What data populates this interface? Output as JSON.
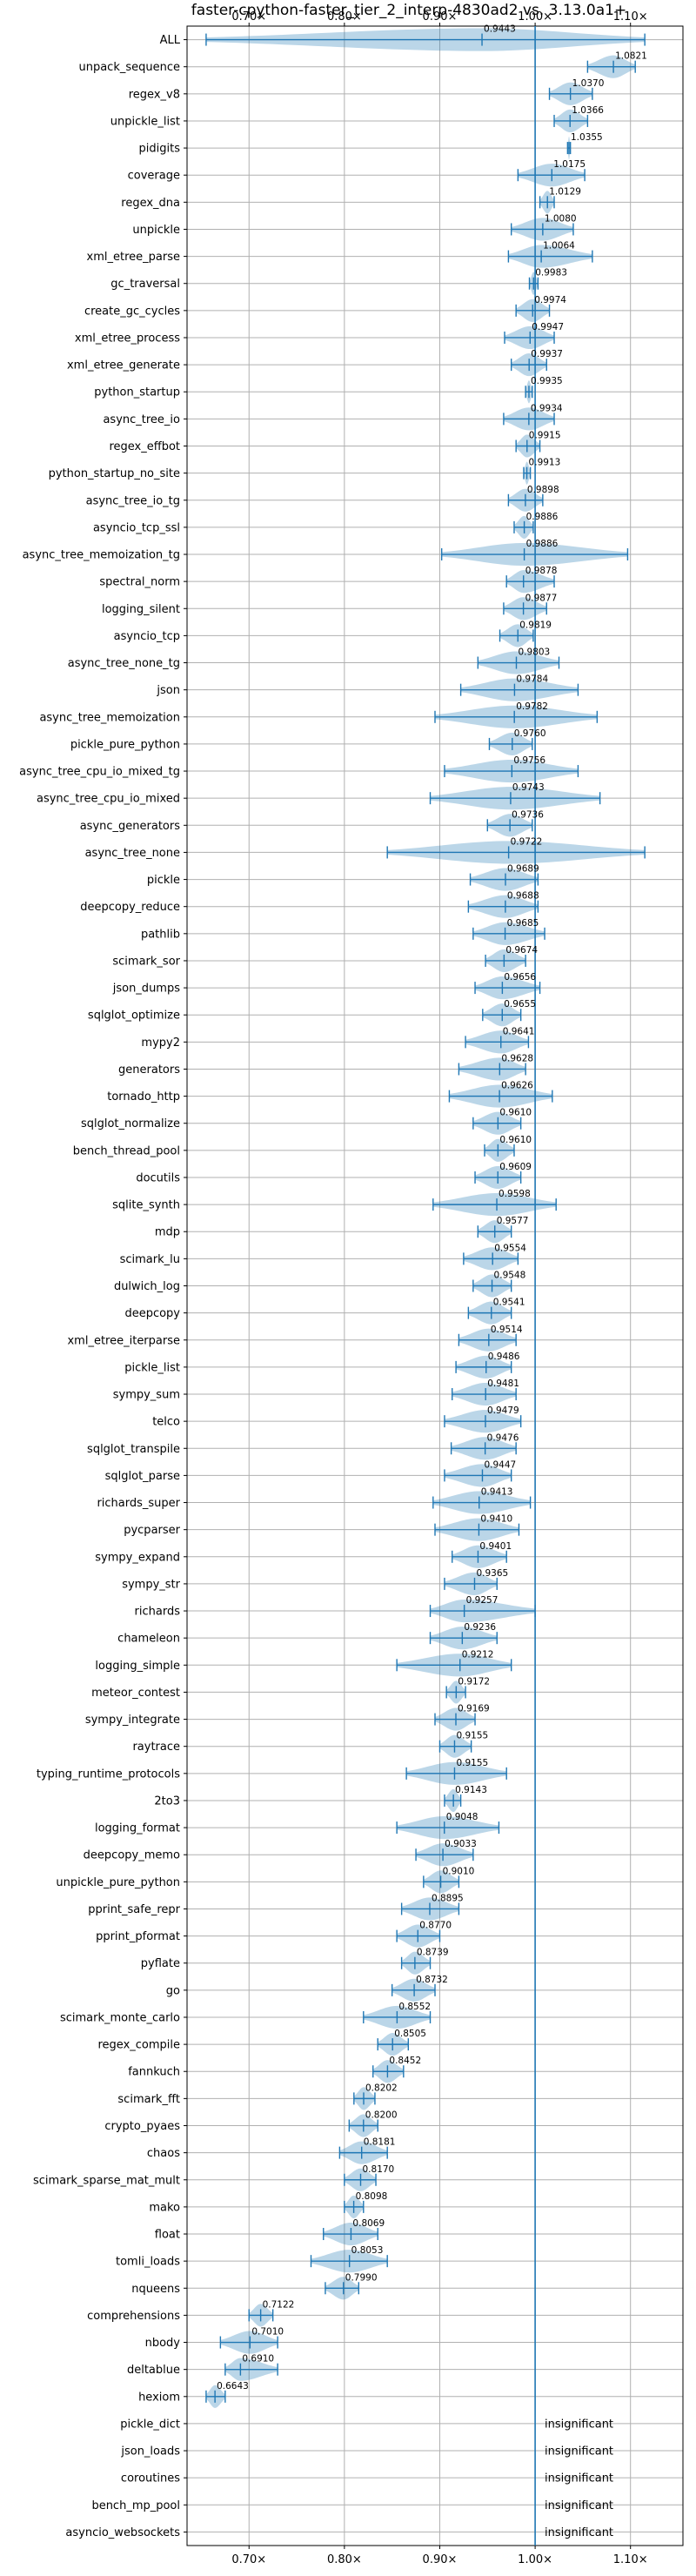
{
  "chart_data": {
    "type": "violin",
    "title": "faster-cpython-faster_tier_2_interp-4830ad2 vs. 3.13.0a1+",
    "xlabel": "",
    "ylabel": "",
    "xlim": [
      0.635,
      1.155
    ],
    "xticks": [
      0.7,
      0.8,
      0.9,
      1.0,
      1.1
    ],
    "xtick_labels": [
      "0.70×",
      "0.80×",
      "0.90×",
      "1.00×",
      "1.10×"
    ],
    "reference_line": 1.0,
    "grid": true,
    "insignificant_label": "insignificant",
    "benchmarks": [
      {
        "name": "ALL",
        "mean": 0.9443,
        "lo": 0.655,
        "hi": 1.115
      },
      {
        "name": "unpack_sequence",
        "mean": 1.0821,
        "lo": 1.055,
        "hi": 1.105
      },
      {
        "name": "regex_v8",
        "mean": 1.037,
        "lo": 1.015,
        "hi": 1.06
      },
      {
        "name": "unpickle_list",
        "mean": 1.0366,
        "lo": 1.02,
        "hi": 1.055
      },
      {
        "name": "pidigits",
        "mean": 1.0355,
        "lo": 1.034,
        "hi": 1.037
      },
      {
        "name": "coverage",
        "mean": 1.0175,
        "lo": 0.982,
        "hi": 1.052
      },
      {
        "name": "regex_dna",
        "mean": 1.0129,
        "lo": 1.005,
        "hi": 1.02
      },
      {
        "name": "unpickle",
        "mean": 1.008,
        "lo": 0.975,
        "hi": 1.04
      },
      {
        "name": "xml_etree_parse",
        "mean": 1.0064,
        "lo": 0.972,
        "hi": 1.06
      },
      {
        "name": "gc_traversal",
        "mean": 0.9983,
        "lo": 0.994,
        "hi": 1.003
      },
      {
        "name": "create_gc_cycles",
        "mean": 0.9974,
        "lo": 0.98,
        "hi": 1.015
      },
      {
        "name": "xml_etree_process",
        "mean": 0.9947,
        "lo": 0.968,
        "hi": 1.02
      },
      {
        "name": "xml_etree_generate",
        "mean": 0.9937,
        "lo": 0.975,
        "hi": 1.012
      },
      {
        "name": "python_startup",
        "mean": 0.9935,
        "lo": 0.99,
        "hi": 0.997
      },
      {
        "name": "async_tree_io",
        "mean": 0.9934,
        "lo": 0.967,
        "hi": 1.02
      },
      {
        "name": "regex_effbot",
        "mean": 0.9915,
        "lo": 0.98,
        "hi": 1.005
      },
      {
        "name": "python_startup_no_site",
        "mean": 0.9913,
        "lo": 0.988,
        "hi": 0.995
      },
      {
        "name": "async_tree_io_tg",
        "mean": 0.9898,
        "lo": 0.972,
        "hi": 1.008
      },
      {
        "name": "asyncio_tcp_ssl",
        "mean": 0.9886,
        "lo": 0.978,
        "hi": 0.998
      },
      {
        "name": "async_tree_memoization_tg",
        "mean": 0.9886,
        "lo": 0.902,
        "hi": 1.097
      },
      {
        "name": "spectral_norm",
        "mean": 0.9878,
        "lo": 0.97,
        "hi": 1.02
      },
      {
        "name": "logging_silent",
        "mean": 0.9877,
        "lo": 0.967,
        "hi": 1.012
      },
      {
        "name": "asyncio_tcp",
        "mean": 0.9819,
        "lo": 0.963,
        "hi": 0.998
      },
      {
        "name": "async_tree_none_tg",
        "mean": 0.9803,
        "lo": 0.94,
        "hi": 1.025
      },
      {
        "name": "json",
        "mean": 0.9784,
        "lo": 0.922,
        "hi": 1.045
      },
      {
        "name": "async_tree_memoization",
        "mean": 0.9782,
        "lo": 0.895,
        "hi": 1.065
      },
      {
        "name": "pickle_pure_python",
        "mean": 0.976,
        "lo": 0.952,
        "hi": 0.997
      },
      {
        "name": "async_tree_cpu_io_mixed_tg",
        "mean": 0.9756,
        "lo": 0.905,
        "hi": 1.045
      },
      {
        "name": "async_tree_cpu_io_mixed",
        "mean": 0.9743,
        "lo": 0.89,
        "hi": 1.068
      },
      {
        "name": "async_generators",
        "mean": 0.9736,
        "lo": 0.95,
        "hi": 0.997
      },
      {
        "name": "async_tree_none",
        "mean": 0.9722,
        "lo": 0.845,
        "hi": 1.115
      },
      {
        "name": "pickle",
        "mean": 0.9689,
        "lo": 0.932,
        "hi": 1.003
      },
      {
        "name": "deepcopy_reduce",
        "mean": 0.9688,
        "lo": 0.93,
        "hi": 1.003
      },
      {
        "name": "pathlib",
        "mean": 0.9685,
        "lo": 0.935,
        "hi": 1.01
      },
      {
        "name": "scimark_sor",
        "mean": 0.9674,
        "lo": 0.948,
        "hi": 0.99
      },
      {
        "name": "json_dumps",
        "mean": 0.9656,
        "lo": 0.937,
        "hi": 1.005
      },
      {
        "name": "sqlglot_optimize",
        "mean": 0.9655,
        "lo": 0.945,
        "hi": 0.985
      },
      {
        "name": "mypy2",
        "mean": 0.9641,
        "lo": 0.927,
        "hi": 0.993
      },
      {
        "name": "generators",
        "mean": 0.9628,
        "lo": 0.92,
        "hi": 0.99
      },
      {
        "name": "tornado_http",
        "mean": 0.9626,
        "lo": 0.91,
        "hi": 1.018
      },
      {
        "name": "sqlglot_normalize",
        "mean": 0.961,
        "lo": 0.935,
        "hi": 0.985
      },
      {
        "name": "bench_thread_pool",
        "mean": 0.961,
        "lo": 0.947,
        "hi": 0.978
      },
      {
        "name": "docutils",
        "mean": 0.9609,
        "lo": 0.937,
        "hi": 0.985
      },
      {
        "name": "sqlite_synth",
        "mean": 0.9598,
        "lo": 0.893,
        "hi": 1.022
      },
      {
        "name": "mdp",
        "mean": 0.9577,
        "lo": 0.94,
        "hi": 0.975
      },
      {
        "name": "scimark_lu",
        "mean": 0.9554,
        "lo": 0.925,
        "hi": 0.982
      },
      {
        "name": "dulwich_log",
        "mean": 0.9548,
        "lo": 0.935,
        "hi": 0.975
      },
      {
        "name": "deepcopy",
        "mean": 0.9541,
        "lo": 0.93,
        "hi": 0.975
      },
      {
        "name": "xml_etree_iterparse",
        "mean": 0.9514,
        "lo": 0.92,
        "hi": 0.98
      },
      {
        "name": "pickle_list",
        "mean": 0.9486,
        "lo": 0.917,
        "hi": 0.975
      },
      {
        "name": "sympy_sum",
        "mean": 0.9481,
        "lo": 0.913,
        "hi": 0.98
      },
      {
        "name": "telco",
        "mean": 0.9479,
        "lo": 0.905,
        "hi": 0.985
      },
      {
        "name": "sqlglot_transpile",
        "mean": 0.9476,
        "lo": 0.912,
        "hi": 0.98
      },
      {
        "name": "sqlglot_parse",
        "mean": 0.9447,
        "lo": 0.905,
        "hi": 0.975
      },
      {
        "name": "richards_super",
        "mean": 0.9413,
        "lo": 0.893,
        "hi": 0.995
      },
      {
        "name": "pycparser",
        "mean": 0.941,
        "lo": 0.895,
        "hi": 0.983
      },
      {
        "name": "sympy_expand",
        "mean": 0.9401,
        "lo": 0.913,
        "hi": 0.97
      },
      {
        "name": "sympy_str",
        "mean": 0.9365,
        "lo": 0.905,
        "hi": 0.96
      },
      {
        "name": "richards",
        "mean": 0.9257,
        "lo": 0.89,
        "hi": 1.0
      },
      {
        "name": "chameleon",
        "mean": 0.9236,
        "lo": 0.89,
        "hi": 0.96
      },
      {
        "name": "logging_simple",
        "mean": 0.9212,
        "lo": 0.855,
        "hi": 0.975
      },
      {
        "name": "meteor_contest",
        "mean": 0.9172,
        "lo": 0.907,
        "hi": 0.927
      },
      {
        "name": "sympy_integrate",
        "mean": 0.9169,
        "lo": 0.895,
        "hi": 0.937
      },
      {
        "name": "raytrace",
        "mean": 0.9155,
        "lo": 0.9,
        "hi": 0.933
      },
      {
        "name": "typing_runtime_protocols",
        "mean": 0.9155,
        "lo": 0.865,
        "hi": 0.97
      },
      {
        "name": "2to3",
        "mean": 0.9143,
        "lo": 0.905,
        "hi": 0.922
      },
      {
        "name": "logging_format",
        "mean": 0.9048,
        "lo": 0.855,
        "hi": 0.962
      },
      {
        "name": "deepcopy_memo",
        "mean": 0.9033,
        "lo": 0.875,
        "hi": 0.935
      },
      {
        "name": "unpickle_pure_python",
        "mean": 0.901,
        "lo": 0.883,
        "hi": 0.92
      },
      {
        "name": "pprint_safe_repr",
        "mean": 0.8895,
        "lo": 0.86,
        "hi": 0.92
      },
      {
        "name": "pprint_pformat",
        "mean": 0.877,
        "lo": 0.855,
        "hi": 0.9
      },
      {
        "name": "pyflate",
        "mean": 0.8739,
        "lo": 0.86,
        "hi": 0.89
      },
      {
        "name": "go",
        "mean": 0.8732,
        "lo": 0.85,
        "hi": 0.895
      },
      {
        "name": "scimark_monte_carlo",
        "mean": 0.8552,
        "lo": 0.82,
        "hi": 0.89
      },
      {
        "name": "regex_compile",
        "mean": 0.8505,
        "lo": 0.835,
        "hi": 0.867
      },
      {
        "name": "fannkuch",
        "mean": 0.8452,
        "lo": 0.83,
        "hi": 0.862
      },
      {
        "name": "scimark_fft",
        "mean": 0.8202,
        "lo": 0.81,
        "hi": 0.832
      },
      {
        "name": "crypto_pyaes",
        "mean": 0.82,
        "lo": 0.805,
        "hi": 0.835
      },
      {
        "name": "chaos",
        "mean": 0.8181,
        "lo": 0.795,
        "hi": 0.845
      },
      {
        "name": "scimark_sparse_mat_mult",
        "mean": 0.817,
        "lo": 0.8,
        "hi": 0.833
      },
      {
        "name": "mako",
        "mean": 0.8098,
        "lo": 0.8,
        "hi": 0.82
      },
      {
        "name": "float",
        "mean": 0.8069,
        "lo": 0.778,
        "hi": 0.835
      },
      {
        "name": "tomli_loads",
        "mean": 0.8053,
        "lo": 0.765,
        "hi": 0.845
      },
      {
        "name": "nqueens",
        "mean": 0.799,
        "lo": 0.78,
        "hi": 0.815
      },
      {
        "name": "comprehensions",
        "mean": 0.7122,
        "lo": 0.7,
        "hi": 0.725
      },
      {
        "name": "nbody",
        "mean": 0.701,
        "lo": 0.67,
        "hi": 0.73
      },
      {
        "name": "deltablue",
        "mean": 0.691,
        "lo": 0.675,
        "hi": 0.73
      },
      {
        "name": "hexiom",
        "mean": 0.6643,
        "lo": 0.655,
        "hi": 0.675
      },
      {
        "name": "pickle_dict",
        "mean": null
      },
      {
        "name": "json_loads",
        "mean": null
      },
      {
        "name": "coroutines",
        "mean": null
      },
      {
        "name": "bench_mp_pool",
        "mean": null
      },
      {
        "name": "asyncio_websockets",
        "mean": null
      }
    ]
  },
  "colors": {
    "accent": "#1f77b4",
    "violin_fill": "#1f77b4",
    "grid": "#b0b0b0"
  }
}
